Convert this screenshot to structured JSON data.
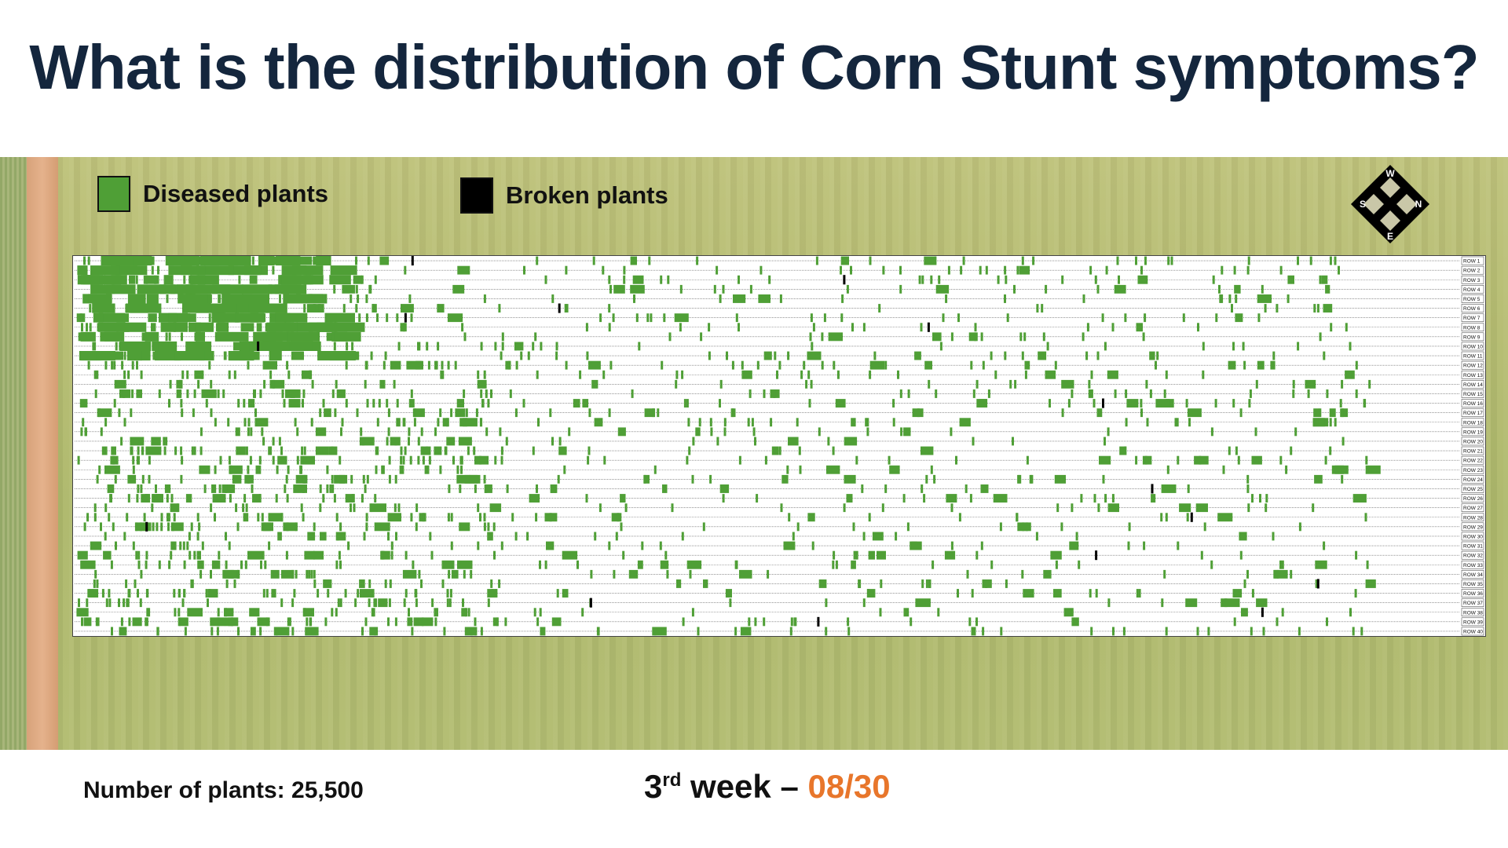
{
  "title": "What is the distribution of Corn Stunt symptoms?",
  "legend": {
    "diseased": {
      "label": "Diseased plants",
      "color": "#4f9f36"
    },
    "broken": {
      "label": "Broken plants",
      "color": "#000000"
    }
  },
  "compass": {
    "top": "W",
    "left": "S",
    "right": "N",
    "bottom": "E"
  },
  "rows": [
    "ROW 1",
    "ROW 2",
    "ROW 3",
    "ROW 4",
    "ROW 5",
    "ROW 6",
    "ROW 7",
    "ROW 8",
    "ROW 9",
    "ROW 10",
    "ROW 11",
    "ROW 12",
    "ROW 13",
    "ROW 14",
    "ROW 15",
    "ROW 16",
    "ROW 17",
    "ROW 18",
    "ROW 19",
    "ROW 20",
    "ROW 21",
    "ROW 22",
    "ROW 23",
    "ROW 24",
    "ROW 25",
    "ROW 26",
    "ROW 27",
    "ROW 28",
    "ROW 29",
    "ROW 30",
    "ROW 31",
    "ROW 32",
    "ROW 33",
    "ROW 34",
    "ROW 35",
    "ROW 36",
    "ROW 37",
    "ROW 38",
    "ROW 39",
    "ROW 40"
  ],
  "footer": {
    "plants": "Number of plants: 25,500",
    "week_num": "3",
    "week_sup": "rd",
    "week_text": " week – ",
    "date": "08/30"
  },
  "colors": {
    "date": "#e8762b",
    "title": "#14263d"
  }
}
